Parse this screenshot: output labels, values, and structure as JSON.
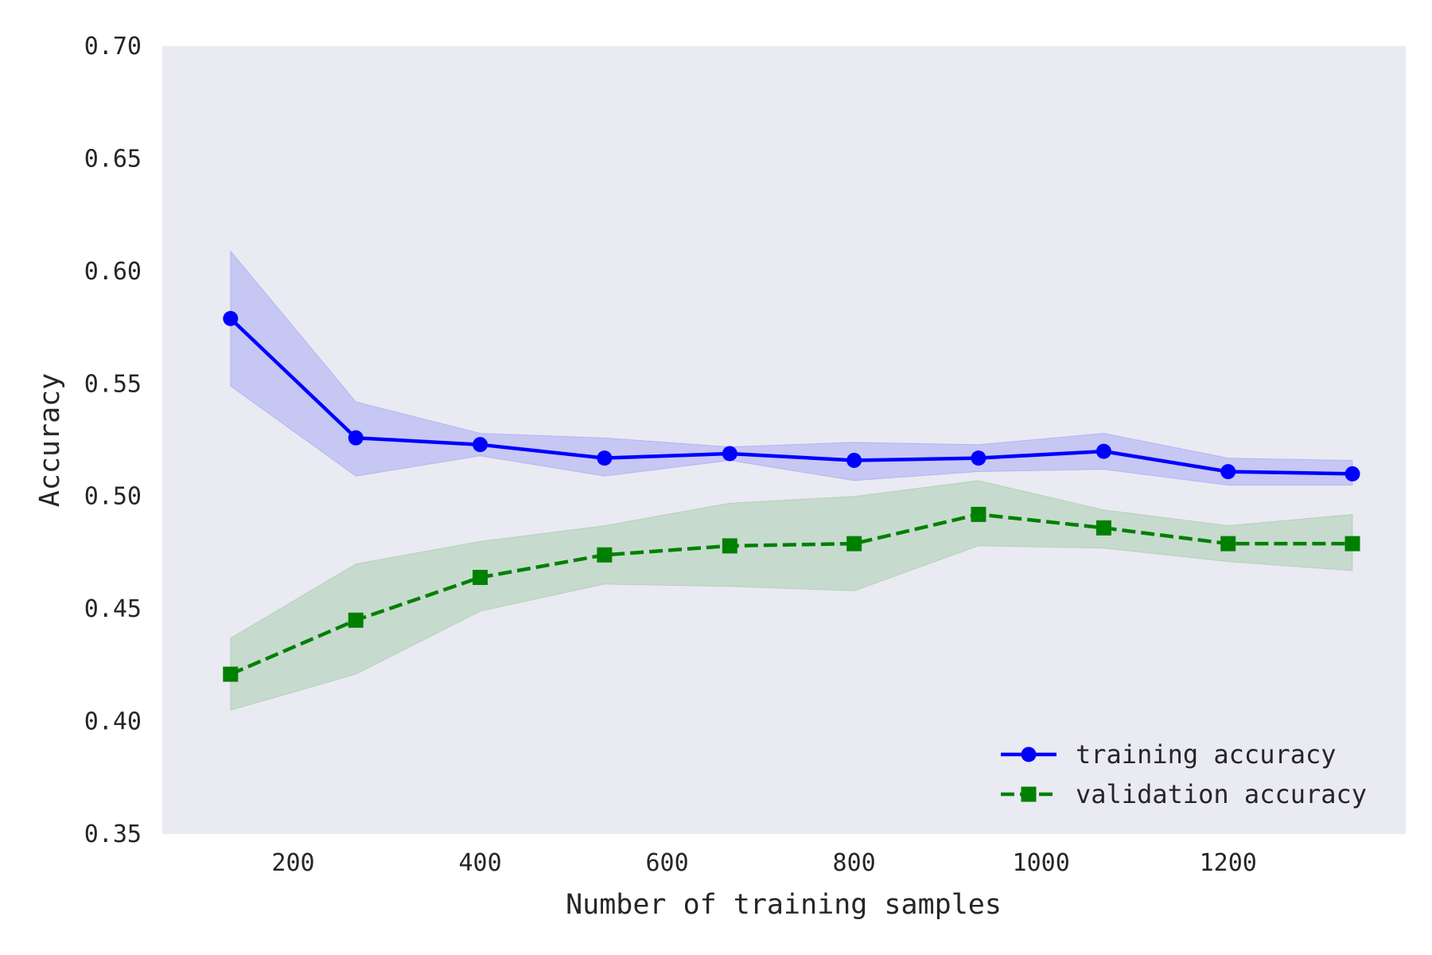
{
  "chart_data": {
    "type": "line",
    "title": "",
    "xlabel": "Number of training samples",
    "ylabel": "Accuracy",
    "xlim": [
      60,
      1390
    ],
    "ylim": [
      0.35,
      0.7
    ],
    "x_ticks": [
      200,
      400,
      600,
      800,
      1000,
      1200
    ],
    "y_ticks": [
      0.35,
      0.4,
      0.45,
      0.5,
      0.55,
      0.6,
      0.65,
      0.7
    ],
    "y_tick_labels": [
      "0.35",
      "0.40",
      "0.45",
      "0.50",
      "0.55",
      "0.60",
      "0.65",
      "0.70"
    ],
    "grid": false,
    "background": "#EAEAF2",
    "legend_position": "lower right",
    "x": [
      133,
      267,
      400,
      533,
      667,
      800,
      933,
      1067,
      1200,
      1333
    ],
    "series": [
      {
        "name": "training accuracy",
        "color": "#0000FF",
        "band_color": "#0000FF",
        "line_style": "solid",
        "marker": "circle",
        "values": [
          0.579,
          0.526,
          0.523,
          0.517,
          0.519,
          0.516,
          0.517,
          0.52,
          0.511,
          0.51
        ],
        "upper": [
          0.609,
          0.542,
          0.528,
          0.526,
          0.522,
          0.524,
          0.523,
          0.528,
          0.517,
          0.516
        ],
        "lower": [
          0.549,
          0.509,
          0.518,
          0.509,
          0.516,
          0.507,
          0.511,
          0.512,
          0.505,
          0.505
        ]
      },
      {
        "name": "validation accuracy",
        "color": "#008000",
        "band_color": "#008000",
        "line_style": "dashed",
        "marker": "square",
        "values": [
          0.421,
          0.445,
          0.464,
          0.474,
          0.478,
          0.479,
          0.492,
          0.486,
          0.479,
          0.479
        ],
        "upper": [
          0.437,
          0.47,
          0.48,
          0.487,
          0.497,
          0.5,
          0.507,
          0.494,
          0.487,
          0.492
        ],
        "lower": [
          0.405,
          0.421,
          0.449,
          0.461,
          0.46,
          0.458,
          0.478,
          0.477,
          0.471,
          0.467
        ]
      }
    ]
  }
}
